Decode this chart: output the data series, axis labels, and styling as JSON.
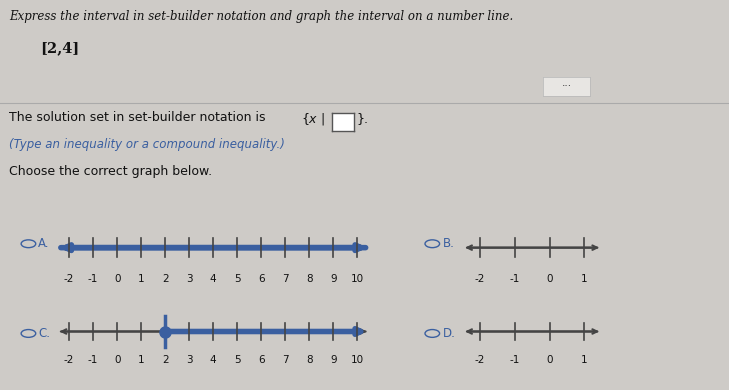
{
  "title_line1": "Express the interval in set-builder notation and graph the interval on a number line.",
  "interval_text": "[2,4]",
  "solution_hint": "(Type an inequality or a compound inequality.)",
  "choose_text": "Choose the correct graph below.",
  "bg_color": "#cecbc7",
  "line_color": "#444444",
  "highlight_color": "#3a5fa0",
  "text_color_blue": "#3a5fa0",
  "text_color_dark": "#111111",
  "separator_color": "#aaaaaa",
  "btn_color": "#e8e6e3",
  "box_color": "#ffffff"
}
